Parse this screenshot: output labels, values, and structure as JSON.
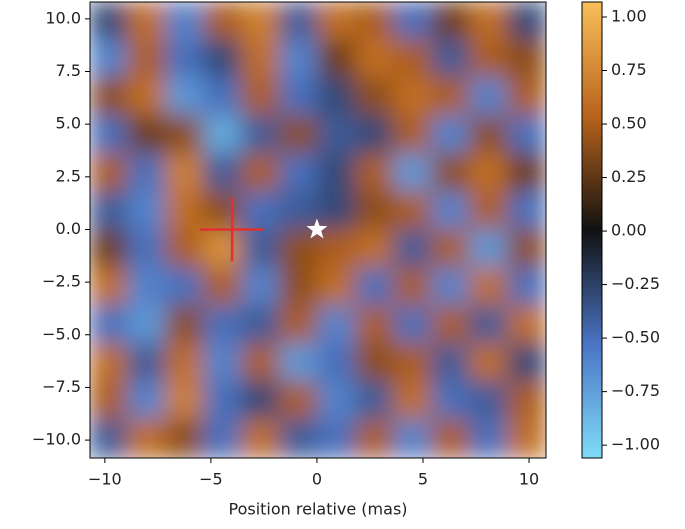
{
  "chart_data": {
    "type": "heatmap",
    "xlabel": "Position relative (mas)",
    "xlim": [
      -10.7,
      10.8
    ],
    "ylim": [
      -10.85,
      10.8
    ],
    "xticks": [
      {
        "value": -10,
        "label": "−10"
      },
      {
        "value": -5,
        "label": "−5"
      },
      0,
      5,
      10
    ],
    "yticks": [
      {
        "value": 10,
        "label": "10.0"
      },
      {
        "value": 7.5,
        "label": "7.5"
      },
      {
        "value": 5,
        "label": "5.0"
      },
      {
        "value": 2.5,
        "label": "2.5"
      },
      {
        "value": 0,
        "label": "0.0"
      },
      {
        "value": -2.5,
        "label": "−2.5"
      },
      {
        "value": -5,
        "label": "−5.0"
      },
      {
        "value": -7.5,
        "label": "−7.5"
      },
      {
        "value": -10,
        "label": "−10.0"
      }
    ],
    "clim": [
      -1.06,
      1.07
    ],
    "cticks": [
      {
        "value": 1,
        "label": "1.00"
      },
      {
        "value": 0.75,
        "label": "0.75"
      },
      {
        "value": 0.5,
        "label": "0.50"
      },
      {
        "value": 0.25,
        "label": "0.25"
      },
      {
        "value": 0,
        "label": "0.00"
      },
      {
        "value": -0.25,
        "label": "−0.25"
      },
      {
        "value": -0.5,
        "label": "−0.50"
      },
      {
        "value": -0.75,
        "label": "−0.75"
      },
      {
        "value": -1,
        "label": "−1.00"
      }
    ],
    "colormap": [
      "#7fdcf7",
      "#4a74c4",
      "#111111",
      "#b8631c",
      "#f9bf5a"
    ],
    "z": [
      [
        -0.3,
        0.6,
        -0.6,
        0.5,
        0.7,
        -0.4,
        0.6,
        0.5,
        -0.5,
        0.3,
        0.6,
        -0.3
      ],
      [
        -0.6,
        0.5,
        -0.5,
        -0.3,
        0.6,
        -0.6,
        0.3,
        0.6,
        0.5,
        -0.4,
        0.5,
        0.4
      ],
      [
        0.4,
        0.6,
        -0.7,
        -0.5,
        0.5,
        -0.5,
        -0.3,
        0.4,
        0.6,
        0.5,
        -0.6,
        0.5
      ],
      [
        -0.5,
        0.3,
        0.4,
        -0.8,
        -0.4,
        0.4,
        -0.4,
        -0.3,
        0.5,
        -0.6,
        0.4,
        -0.5
      ],
      [
        0.5,
        -0.5,
        0.7,
        -0.4,
        0.5,
        -0.5,
        -0.3,
        0.5,
        -0.7,
        0.4,
        0.6,
        0.3
      ],
      [
        -0.4,
        -0.6,
        0.6,
        0.4,
        -0.5,
        -0.4,
        -0.3,
        0.4,
        0.5,
        -0.6,
        0.5,
        -0.5
      ],
      [
        0.3,
        -0.5,
        0.5,
        0.8,
        -0.4,
        0.4,
        0.5,
        0.6,
        -0.4,
        0.5,
        -0.7,
        0.4
      ],
      [
        0.6,
        -0.6,
        -0.5,
        0.5,
        -0.6,
        0.4,
        0.6,
        -0.5,
        0.5,
        -0.6,
        0.6,
        -0.5
      ],
      [
        -0.5,
        -0.7,
        0.4,
        -0.5,
        -0.4,
        0.5,
        -0.6,
        0.5,
        -0.5,
        0.5,
        -0.4,
        0.6
      ],
      [
        0.6,
        -0.4,
        0.6,
        -0.6,
        0.5,
        -0.7,
        -0.5,
        0.4,
        0.5,
        -0.4,
        0.6,
        -0.3
      ],
      [
        0.5,
        -0.6,
        0.7,
        -0.5,
        -0.3,
        0.5,
        -0.6,
        -0.4,
        0.6,
        -0.5,
        -0.4,
        0.5
      ],
      [
        -0.4,
        0.6,
        0.4,
        -0.5,
        0.6,
        -0.4,
        -0.5,
        0.5,
        -0.6,
        0.5,
        -0.5,
        0.6
      ]
    ],
    "markers": [
      {
        "type": "cross",
        "x": -4,
        "y": 0,
        "color": "#e03030"
      },
      {
        "type": "star",
        "x": 0,
        "y": 0,
        "color": "#ffffff"
      }
    ]
  }
}
